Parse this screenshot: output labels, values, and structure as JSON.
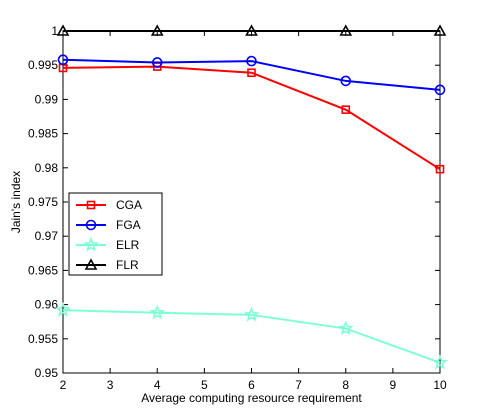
{
  "chart_data": {
    "type": "line",
    "title": "",
    "xlabel": "Average computing resource requirement",
    "ylabel": "Jain's index",
    "xlim": [
      2,
      10
    ],
    "ylim": [
      0.95,
      1.0
    ],
    "x_ticks": [
      2,
      3,
      4,
      5,
      6,
      7,
      8,
      9,
      10
    ],
    "y_ticks": [
      "0.95",
      "0.955",
      "0.96",
      "0.965",
      "0.97",
      "0.975",
      "0.98",
      "0.985",
      "0.99",
      "0.995",
      "1"
    ],
    "grid": false,
    "legend_position": "center-left",
    "x": [
      2,
      4,
      6,
      8,
      10
    ],
    "series": [
      {
        "name": "CGA",
        "color": "#ff0000",
        "marker": "square",
        "values": [
          0.9946,
          0.9948,
          0.9939,
          0.9885,
          0.9798
        ]
      },
      {
        "name": "FGA",
        "color": "#0000ff",
        "marker": "circle",
        "values": [
          0.9958,
          0.9954,
          0.9956,
          0.9927,
          0.9914
        ]
      },
      {
        "name": "ELR",
        "color": "#7fffd4",
        "marker": "star",
        "values": [
          0.9592,
          0.9588,
          0.9585,
          0.9565,
          0.9515
        ]
      },
      {
        "name": "FLR",
        "color": "#000000",
        "marker": "triangle",
        "values": [
          1.0,
          1.0,
          1.0,
          1.0,
          1.0
        ]
      }
    ]
  }
}
